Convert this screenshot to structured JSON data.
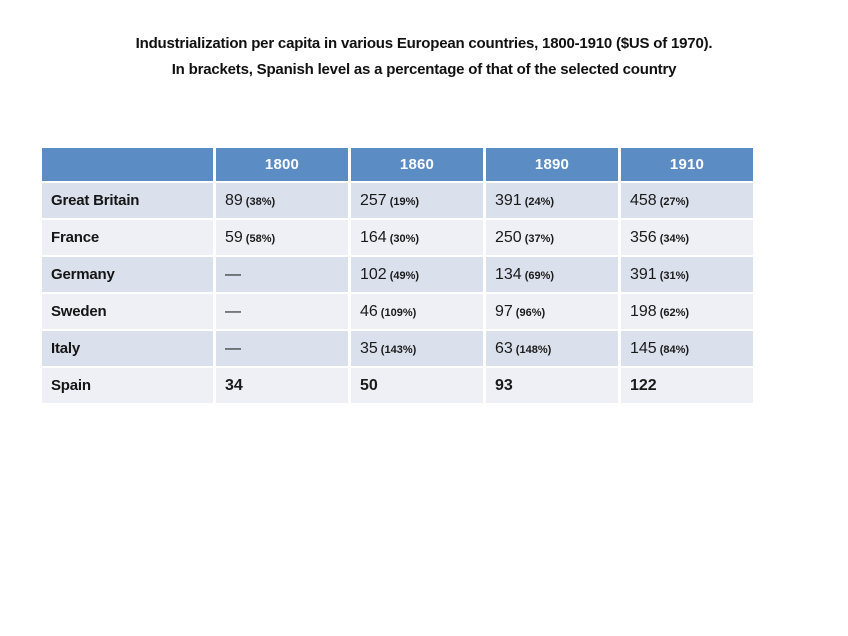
{
  "title": {
    "line1": "Industrialization per capita in various European countries, 1800-1910 ($US of 1970).",
    "line2": "In brackets, Spanish level as a percentage of that of the selected country"
  },
  "colors": {
    "header_bg": "#5C8CC4",
    "header_text": "#FFFFFF",
    "band_dark": "#DBE1EC",
    "band_light": "#EEF0F5",
    "text": "#1A1A1A",
    "page_bg": "#FFFFFF"
  },
  "table": {
    "columns": [
      "",
      "1800",
      "1860",
      "1890",
      "1910"
    ],
    "rows": [
      {
        "country": "Great Britain",
        "cells": [
          {
            "v": "89",
            "p": "(38%)"
          },
          {
            "v": "257",
            "p": "(19%)"
          },
          {
            "v": "391",
            "p": "(24%)"
          },
          {
            "v": "458",
            "p": "(27%)"
          }
        ]
      },
      {
        "country": "France",
        "cells": [
          {
            "v": "59",
            "p": "(58%)"
          },
          {
            "v": "164",
            "p": "(30%)"
          },
          {
            "v": "250",
            "p": "(37%)"
          },
          {
            "v": "356",
            "p": "(34%)"
          }
        ]
      },
      {
        "country": "Germany",
        "cells": [
          {
            "v": "—",
            "p": ""
          },
          {
            "v": "102",
            "p": "(49%)"
          },
          {
            "v": "134",
            "p": "(69%)"
          },
          {
            "v": "391",
            "p": "(31%)"
          }
        ]
      },
      {
        "country": "Sweden",
        "cells": [
          {
            "v": "—",
            "p": ""
          },
          {
            "v": "46",
            "p": "(109%)"
          },
          {
            "v": "97",
            "p": "(96%)"
          },
          {
            "v": "198",
            "p": "(62%)"
          }
        ]
      },
      {
        "country": "Italy",
        "cells": [
          {
            "v": "—",
            "p": ""
          },
          {
            "v": "35",
            "p": "(143%)"
          },
          {
            "v": "63",
            "p": "(148%)"
          },
          {
            "v": "145",
            "p": "(84%)"
          }
        ]
      },
      {
        "country": "Spain",
        "cells": [
          {
            "v": "34",
            "p": ""
          },
          {
            "v": "50",
            "p": ""
          },
          {
            "v": "93",
            "p": ""
          },
          {
            "v": "122",
            "p": ""
          }
        ]
      }
    ]
  },
  "chart_data": {
    "type": "table",
    "title": "Industrialization per capita in various European countries, 1800-1910 ($US of 1970). In brackets, Spanish level as a percentage of that of the selected country",
    "categories": [
      "1800",
      "1860",
      "1890",
      "1910"
    ],
    "series": [
      {
        "name": "Great Britain",
        "values": [
          89,
          257,
          391,
          458
        ],
        "spain_pct_of_country": [
          "38%",
          "19%",
          "24%",
          "27%"
        ]
      },
      {
        "name": "France",
        "values": [
          59,
          164,
          250,
          356
        ],
        "spain_pct_of_country": [
          "58%",
          "30%",
          "37%",
          "34%"
        ]
      },
      {
        "name": "Germany",
        "values": [
          null,
          102,
          134,
          391
        ],
        "spain_pct_of_country": [
          null,
          "49%",
          "69%",
          "31%"
        ]
      },
      {
        "name": "Sweden",
        "values": [
          null,
          46,
          97,
          198
        ],
        "spain_pct_of_country": [
          null,
          "109%",
          "96%",
          "62%"
        ]
      },
      {
        "name": "Italy",
        "values": [
          null,
          35,
          63,
          145
        ],
        "spain_pct_of_country": [
          null,
          "143%",
          "148%",
          "84%"
        ]
      },
      {
        "name": "Spain",
        "values": [
          34,
          50,
          93,
          122
        ],
        "spain_pct_of_country": [
          null,
          null,
          null,
          null
        ]
      }
    ]
  }
}
